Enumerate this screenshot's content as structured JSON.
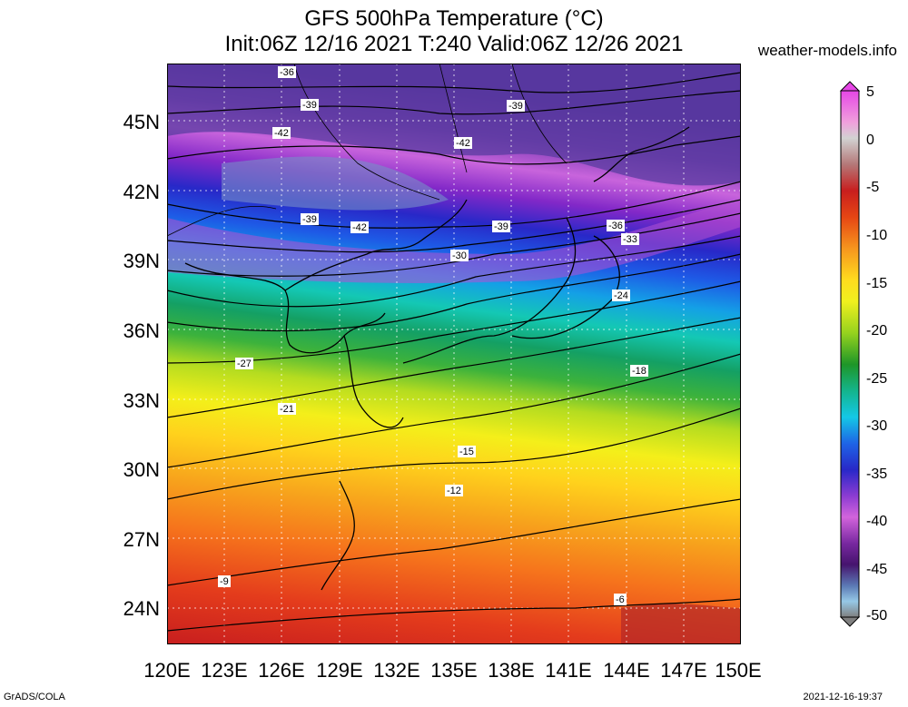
{
  "header": {
    "title_line1": "GFS 500hPa Temperature (°C)",
    "title_line2": "Init:06Z 12/16 2021 T:240 Valid:06Z 12/26 2021",
    "site": "weather-models.info"
  },
  "footer": {
    "left": "GrADS/COLA",
    "right": "2021-12-16-19:37"
  },
  "map": {
    "lon_range": [
      120,
      150
    ],
    "lat_range": [
      22.5,
      47.5
    ],
    "lon_labels": [
      "120E",
      "123E",
      "126E",
      "129E",
      "132E",
      "135E",
      "138E",
      "141E",
      "144E",
      "147E",
      "150E"
    ],
    "lat_labels": [
      "45N",
      "42N",
      "39N",
      "36N",
      "33N",
      "30N",
      "27N",
      "24N"
    ],
    "contour_labels": [
      "-36",
      "-39",
      "-42",
      "-42",
      "-39",
      "-39",
      "-42",
      "-39",
      "-36",
      "-33",
      "-30",
      "-27",
      "-24",
      "-21",
      "-18",
      "-15",
      "-12",
      "-9",
      "-6"
    ]
  },
  "colorbar": {
    "labels": [
      "5",
      "0",
      "-5",
      "-10",
      "-15",
      "-20",
      "-25",
      "-30",
      "-35",
      "-40",
      "-45",
      "-50"
    ],
    "range": [
      -50,
      5
    ]
  }
}
